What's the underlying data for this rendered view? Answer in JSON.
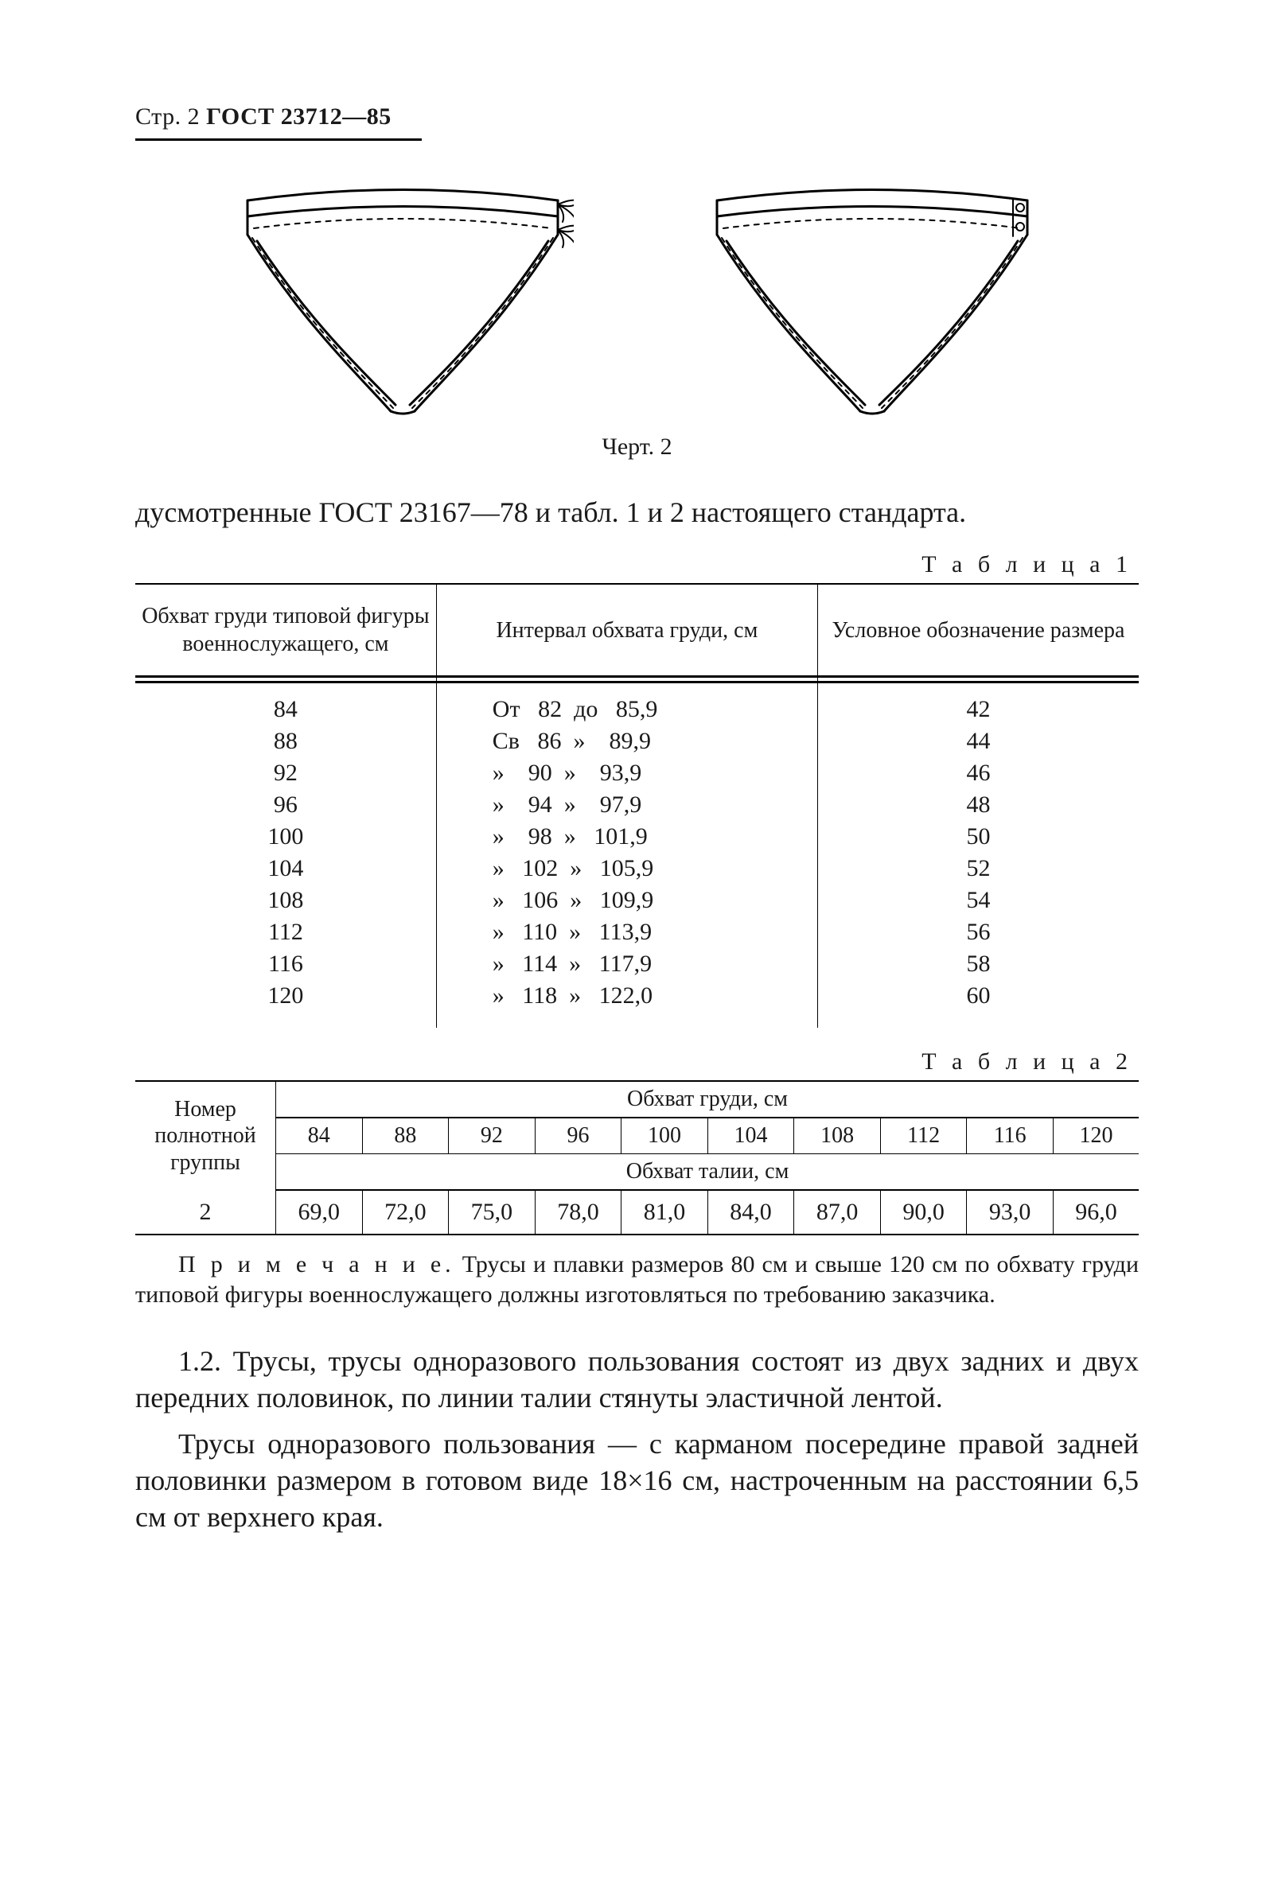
{
  "header": {
    "page_label": "Стр. 2",
    "standard": "ГОСТ 23712—85"
  },
  "figure": {
    "caption": "Черт. 2"
  },
  "lead_text": "дусмотренные ГОСТ 23167—78 и табл. 1 и 2 настоящего стандарта.",
  "table1": {
    "label": "Т а б л и ц а  1",
    "headers": {
      "col1": "Обхват груди типовой фигуры военнослужащего, см",
      "col2": "Интервал обхвата груди, см",
      "col3": "Условное обозначение размера"
    },
    "rows": [
      {
        "chest": "84",
        "interval": "От   82  до   85,9",
        "code": "42"
      },
      {
        "chest": "88",
        "interval": "Св   86  »    89,9",
        "code": "44"
      },
      {
        "chest": "92",
        "interval": "»    90  »    93,9",
        "code": "46"
      },
      {
        "chest": "96",
        "interval": "»    94  »    97,9",
        "code": "48"
      },
      {
        "chest": "100",
        "interval": "»    98  »   101,9",
        "code": "50"
      },
      {
        "chest": "104",
        "interval": "»   102  »   105,9",
        "code": "52"
      },
      {
        "chest": "108",
        "interval": "»   106  »   109,9",
        "code": "54"
      },
      {
        "chest": "112",
        "interval": "»   110  »   113,9",
        "code": "56"
      },
      {
        "chest": "116",
        "interval": "»   114  »   117,9",
        "code": "58"
      },
      {
        "chest": "120",
        "interval": "»   118  »   122,0",
        "code": "60"
      }
    ]
  },
  "table2": {
    "label": "Т а б л и ц а  2",
    "row_header": "Номер полнотной группы",
    "chest_label": "Обхват груди, см",
    "waist_label": "Обхват талии, см",
    "sizes": [
      "84",
      "88",
      "92",
      "96",
      "100",
      "104",
      "108",
      "112",
      "116",
      "120"
    ],
    "group": "2",
    "values": [
      "69,0",
      "72,0",
      "75,0",
      "78,0",
      "81,0",
      "84,0",
      "87,0",
      "90,0",
      "93,0",
      "96,0"
    ]
  },
  "note": {
    "label": "П р и м е ч а н и е.",
    "text": "Трусы и плавки размеров 80 см и свыше 120 см по обхвату груди типовой фигуры военнослужащего должны изготовляться по требованию заказчика."
  },
  "para_1_2_a": "1.2. Трусы, трусы одноразового пользования состоят из двух задних и двух передних половинок, по линии талии стянуты эластичной лентой.",
  "para_1_2_b": "Трусы одноразового пользования — с карманом посередине правой задней половинки размером в готовом виде 18×16 см, настроченным на расстоянии 6,5 см от верхнего края.",
  "style": {
    "page_bg": "#ffffff",
    "text_color": "#1a1a1a",
    "rule_color": "#000000",
    "body_fontsize_pt": 27,
    "table_fontsize_pt": 21,
    "header_fontsize_pt": 22,
    "figure_stroke": "#000000",
    "figure_stroke_width": 2.5,
    "figure_dash": "6,7"
  }
}
